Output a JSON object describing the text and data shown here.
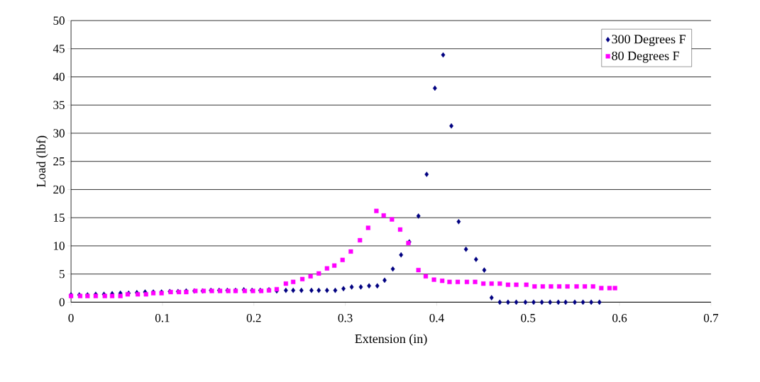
{
  "chart_data": {
    "type": "scatter",
    "xlabel": "Extension (in)",
    "ylabel": "Load (lbf)",
    "xlim": [
      0,
      0.7
    ],
    "xticks": [
      0,
      0.1,
      0.2,
      0.3,
      0.4,
      0.5,
      0.6,
      0.7
    ],
    "ylim": [
      0,
      50
    ],
    "yticks": [
      0,
      5,
      10,
      15,
      20,
      25,
      30,
      35,
      40,
      45,
      50
    ],
    "grid": "y",
    "legend": "top right",
    "series": [
      {
        "name": "300 Degrees F",
        "color": "#000080",
        "marker": "diamond",
        "x": [
          0,
          0.009,
          0.018,
          0.027,
          0.036,
          0.045,
          0.054,
          0.063,
          0.072,
          0.081,
          0.09,
          0.099,
          0.108,
          0.117,
          0.126,
          0.135,
          0.144,
          0.153,
          0.162,
          0.171,
          0.18,
          0.189,
          0.198,
          0.207,
          0.2165,
          0.225,
          0.235,
          0.243,
          0.252,
          0.263,
          0.271,
          0.28,
          0.289,
          0.298,
          0.307,
          0.317,
          0.326,
          0.335,
          0.343,
          0.352,
          0.361,
          0.37,
          0.38,
          0.389,
          0.398,
          0.407,
          0.416,
          0.424,
          0.432,
          0.443,
          0.452,
          0.46,
          0.469,
          0.478,
          0.487,
          0.497,
          0.506,
          0.515,
          0.524,
          0.533,
          0.541,
          0.551,
          0.56,
          0.569,
          0.578
        ],
        "values": [
          1.3,
          1.3,
          1.3,
          1.4,
          1.4,
          1.5,
          1.6,
          1.6,
          1.7,
          1.8,
          1.8,
          1.8,
          1.9,
          1.9,
          2.0,
          2.0,
          2.0,
          2.1,
          2.1,
          2.1,
          2.1,
          2.2,
          2.1,
          2.1,
          2.2,
          2.0,
          2.1,
          2.1,
          2.1,
          2.1,
          2.1,
          2.1,
          2.1,
          2.4,
          2.7,
          2.7,
          2.9,
          2.9,
          3.9,
          5.9,
          8.4,
          10.7,
          15.3,
          22.7,
          38.0,
          43.9,
          31.3,
          14.3,
          9.4,
          7.6,
          5.7,
          0.8,
          0,
          0,
          0,
          0,
          0,
          0,
          0,
          0,
          0,
          0,
          0,
          0,
          0
        ]
      },
      {
        "name": "80 Degrees F",
        "color": "#ff00ff",
        "marker": "square",
        "x": [
          0,
          0.01,
          0.018,
          0.027,
          0.037,
          0.045,
          0.054,
          0.062,
          0.073,
          0.082,
          0.09,
          0.099,
          0.109,
          0.118,
          0.126,
          0.136,
          0.145,
          0.154,
          0.163,
          0.172,
          0.18,
          0.19,
          0.199,
          0.208,
          0.2165,
          0.225,
          0.235,
          0.243,
          0.253,
          0.262,
          0.271,
          0.28,
          0.288,
          0.297,
          0.306,
          0.316,
          0.325,
          0.334,
          0.342,
          0.351,
          0.36,
          0.369,
          0.38,
          0.388,
          0.397,
          0.406,
          0.414,
          0.423,
          0.433,
          0.442,
          0.451,
          0.46,
          0.469,
          0.478,
          0.487,
          0.498,
          0.507,
          0.516,
          0.525,
          0.534,
          0.543,
          0.553,
          0.562,
          0.571,
          0.58,
          0.589,
          0.595
        ],
        "values": [
          1.1,
          1.1,
          1.1,
          1.1,
          1.1,
          1.1,
          1.1,
          1.4,
          1.4,
          1.4,
          1.6,
          1.6,
          1.8,
          1.8,
          1.8,
          2.0,
          2.0,
          2.0,
          2.0,
          2.0,
          2.0,
          2.0,
          2.0,
          2.0,
          2.1,
          2.3,
          3.3,
          3.6,
          4.1,
          4.6,
          5.1,
          6.0,
          6.5,
          7.5,
          9.0,
          11.0,
          13.2,
          16.2,
          15.4,
          14.7,
          12.9,
          10.5,
          5.7,
          4.6,
          4.0,
          3.8,
          3.6,
          3.6,
          3.6,
          3.6,
          3.3,
          3.3,
          3.3,
          3.1,
          3.1,
          3.1,
          2.8,
          2.8,
          2.8,
          2.8,
          2.8,
          2.8,
          2.8,
          2.8,
          2.5,
          2.5,
          2.5
        ]
      }
    ]
  }
}
